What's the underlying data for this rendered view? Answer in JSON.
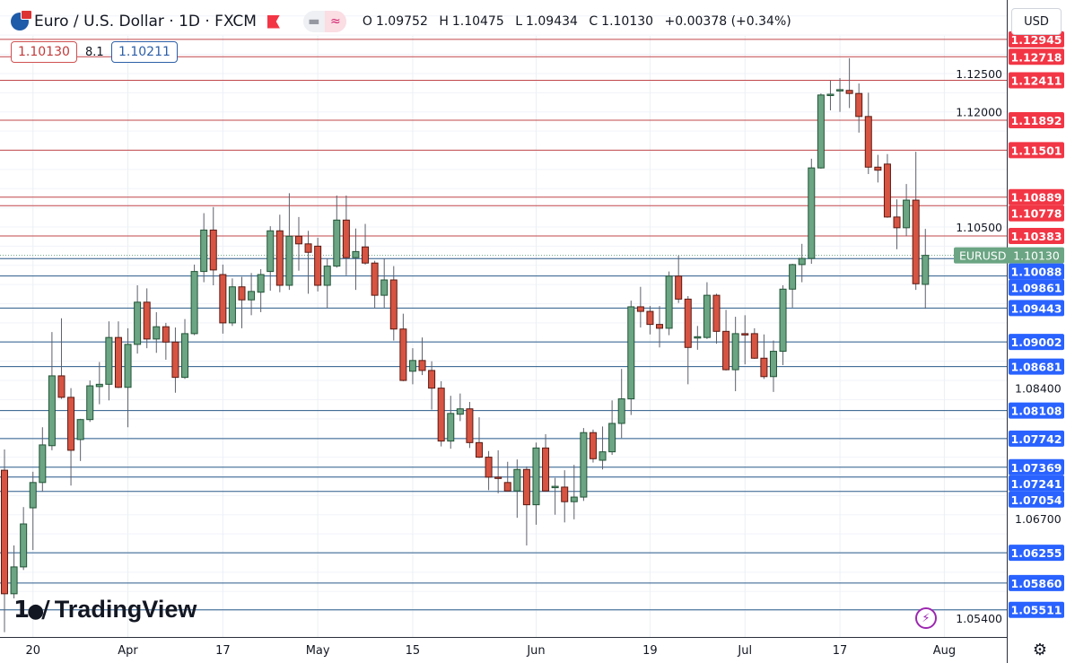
{
  "header": {
    "symbol_title": "Euro / U.S. Dollar · 1D · FXCM",
    "ohlc": {
      "open_label": "O",
      "open": "1.09752",
      "high_label": "H",
      "high": "1.10475",
      "low_label": "L",
      "low": "1.09434",
      "close_label": "C",
      "close": "1.10130",
      "change": "+0.00378 (+0.34%)"
    },
    "sell_price": "1.10130",
    "spread": "8.1",
    "buy_price": "1.10211",
    "currency_button": "USD"
  },
  "branding": {
    "logo_text": "TradingView"
  },
  "icons": {
    "flag": "flag-icon",
    "pill_left": "minus-icon",
    "pill_right": "approx-icon",
    "bolt": "lightning-icon",
    "gear": "gear-icon",
    "globe": "globe-icon"
  },
  "colors": {
    "up": "#6ba583",
    "up_border": "#225437",
    "down": "#d75442",
    "down_border": "#5b1a13",
    "resistance": "#f23645",
    "support": "#2962ff",
    "resistance_line": "#c0474a",
    "support_line": "#2a5a8a",
    "current_price": "#6ba583"
  },
  "chart_data": {
    "type": "candlestick",
    "symbol": "EURUSD",
    "timeframe": "1D",
    "ylim": [
      1.0535,
      1.1345
    ],
    "grid": true,
    "price_ticks": [
      "1.12500",
      "1.12000",
      "1.10500",
      "1.08400",
      "1.06700",
      "1.05400"
    ],
    "x_ticks": [
      {
        "label": "20",
        "date": "Mar 20"
      },
      {
        "label": "Apr",
        "date": "Apr 3"
      },
      {
        "label": "17",
        "date": "Apr 17"
      },
      {
        "label": "May",
        "date": "May 1"
      },
      {
        "label": "15",
        "date": "May 15"
      },
      {
        "label": "Jun",
        "date": "Jun 1"
      },
      {
        "label": "19",
        "date": "Jun 19"
      },
      {
        "label": "Jul",
        "date": "Jul 3"
      },
      {
        "label": "17",
        "date": "Jul 17"
      },
      {
        "label": "Aug",
        "date": "Aug 1"
      }
    ],
    "resistance_levels": [
      "1.12945",
      "1.12718",
      "1.12411",
      "1.11892",
      "1.11501",
      "1.10889",
      "1.10778",
      "1.10383"
    ],
    "support_levels": [
      "1.10088",
      "1.09861",
      "1.09443",
      "1.09002",
      "1.08681",
      "1.08108",
      "1.07742",
      "1.07369",
      "1.07241",
      "1.07054",
      "1.06255",
      "1.05860",
      "1.05511"
    ],
    "current_price": {
      "label": "EURUSD",
      "value": "1.10130"
    },
    "candle_fields": [
      "date",
      "open",
      "high",
      "low",
      "close"
    ],
    "candles": [
      [
        "Mar 15",
        1.0733,
        1.076,
        1.0522,
        1.0572
      ],
      [
        "Mar 16",
        1.0572,
        1.0635,
        1.0566,
        1.0607
      ],
      [
        "Mar 17",
        1.0607,
        1.0685,
        1.0603,
        1.0663
      ],
      [
        "Mar 20",
        1.0684,
        1.0731,
        1.0629,
        1.0717
      ],
      [
        "Mar 21",
        1.0717,
        1.0789,
        1.0705,
        1.0766
      ],
      [
        "Mar 22",
        1.0765,
        1.0913,
        1.0759,
        1.0856
      ],
      [
        "Mar 23",
        1.0856,
        1.0931,
        1.0826,
        1.0828
      ],
      [
        "Mar 24",
        1.0828,
        1.084,
        1.0713,
        1.0759
      ],
      [
        "Mar 27",
        1.0773,
        1.08,
        1.0745,
        1.0799
      ],
      [
        "Mar 28",
        1.0799,
        1.085,
        1.0796,
        1.0843
      ],
      [
        "Mar 29",
        1.0842,
        1.0874,
        1.0819,
        1.0845
      ],
      [
        "Mar 30",
        1.0845,
        1.0927,
        1.0824,
        1.0906
      ],
      [
        "Mar 31",
        1.0906,
        1.0927,
        1.084,
        1.0841
      ],
      [
        "Apr 3",
        1.0841,
        1.0918,
        1.0789,
        1.0897
      ],
      [
        "Apr 4",
        1.0897,
        1.0974,
        1.0885,
        1.0952
      ],
      [
        "Apr 5",
        1.0952,
        1.097,
        1.0892,
        1.0904
      ],
      [
        "Apr 6",
        1.0904,
        1.0939,
        1.0886,
        1.092
      ],
      [
        "Apr 7",
        1.092,
        1.0925,
        1.0877,
        1.09
      ],
      [
        "Apr 10",
        1.09,
        1.0919,
        1.0834,
        1.0854
      ],
      [
        "Apr 11",
        1.0854,
        1.093,
        1.0852,
        1.0911
      ],
      [
        "Apr 12",
        1.0911,
        1.1001,
        1.0909,
        1.0992
      ],
      [
        "Apr 13",
        1.0992,
        1.1068,
        1.0978,
        1.1046
      ],
      [
        "Apr 14",
        1.1046,
        1.1076,
        1.0974,
        1.0994
      ],
      [
        "Apr 17",
        1.0988,
        1.1001,
        1.0911,
        1.0925
      ],
      [
        "Apr 18",
        1.0925,
        1.0983,
        1.0921,
        1.0972
      ],
      [
        "Apr 19",
        1.0972,
        1.0985,
        1.0918,
        1.0955
      ],
      [
        "Apr 20",
        1.0955,
        1.099,
        1.0935,
        1.0966
      ],
      [
        "Apr 21",
        1.0965,
        1.0995,
        1.0939,
        1.0988
      ],
      [
        "Apr 24",
        1.0992,
        1.1051,
        1.0967,
        1.1045
      ],
      [
        "Apr 25",
        1.1045,
        1.1066,
        1.0965,
        1.0974
      ],
      [
        "Apr 26",
        1.0974,
        1.1094,
        1.0968,
        1.1038
      ],
      [
        "Apr 27",
        1.1038,
        1.1063,
        1.0993,
        1.1028
      ],
      [
        "Apr 28",
        1.1028,
        1.1045,
        1.0963,
        1.1017
      ],
      [
        "May 1",
        1.1025,
        1.1036,
        1.0966,
        1.0974
      ],
      [
        "May 2",
        1.0974,
        1.1009,
        1.0944,
        1.0999
      ],
      [
        "May 3",
        1.0999,
        1.1091,
        1.0997,
        1.1059
      ],
      [
        "May 4",
        1.1059,
        1.1091,
        1.0987,
        1.101
      ],
      [
        "May 5",
        1.101,
        1.1048,
        1.0968,
        1.1018
      ],
      [
        "May 8",
        1.1024,
        1.1054,
        1.1001,
        1.1003
      ],
      [
        "May 9",
        1.1003,
        1.1006,
        1.0944,
        1.0961
      ],
      [
        "May 10",
        1.0961,
        1.1009,
        1.0944,
        1.0981
      ],
      [
        "May 11",
        1.0981,
        1.0999,
        1.0902,
        1.0917
      ],
      [
        "May 12",
        1.0917,
        1.0937,
        1.0849,
        1.085
      ],
      [
        "May 15",
        1.0862,
        1.0892,
        1.0845,
        1.0876
      ],
      [
        "May 16",
        1.0876,
        1.0906,
        1.0857,
        1.0863
      ],
      [
        "May 17",
        1.0863,
        1.0875,
        1.0812,
        1.084
      ],
      [
        "May 18",
        1.084,
        1.0849,
        1.0764,
        1.0771
      ],
      [
        "May 19",
        1.0771,
        1.083,
        1.0761,
        1.0807
      ],
      [
        "May 22",
        1.0806,
        1.0833,
        1.0797,
        1.0813
      ],
      [
        "May 23",
        1.0813,
        1.0822,
        1.0762,
        1.0769
      ],
      [
        "May 24",
        1.0769,
        1.0802,
        1.0749,
        1.075
      ],
      [
        "May 25",
        1.075,
        1.0758,
        1.0707,
        1.0724
      ],
      [
        "May 26",
        1.0724,
        1.0759,
        1.0703,
        1.0723
      ],
      [
        "May 29",
        1.0717,
        1.0744,
        1.0705,
        1.0706
      ],
      [
        "May 30",
        1.0706,
        1.0747,
        1.0671,
        1.0734
      ],
      [
        "May 31",
        1.0734,
        1.0738,
        1.0635,
        1.0688
      ],
      [
        "Jun 1",
        1.0688,
        1.0769,
        1.0662,
        1.0762
      ],
      [
        "Jun 2",
        1.0762,
        1.078,
        1.0705,
        1.0706
      ],
      [
        "Jun 5",
        1.0711,
        1.0723,
        1.0675,
        1.0712
      ],
      [
        "Jun 6",
        1.0711,
        1.0733,
        1.0665,
        1.0692
      ],
      [
        "Jun 7",
        1.0692,
        1.074,
        1.0669,
        1.0698
      ],
      [
        "Jun 8",
        1.0698,
        1.0788,
        1.0693,
        1.0782
      ],
      [
        "Jun 9",
        1.0782,
        1.0786,
        1.0743,
        1.0748
      ],
      [
        "Jun 12",
        1.0746,
        1.079,
        1.0734,
        1.0757
      ],
      [
        "Jun 13",
        1.0757,
        1.0824,
        1.0753,
        1.0794
      ],
      [
        "Jun 14",
        1.0794,
        1.0865,
        1.0775,
        1.0826
      ],
      [
        "Jun 15",
        1.0826,
        1.0954,
        1.0805,
        1.0946
      ],
      [
        "Jun 16",
        1.0946,
        1.0972,
        1.0919,
        1.094
      ],
      [
        "Jun 19",
        1.094,
        1.0947,
        1.091,
        1.0923
      ],
      [
        "Jun 20",
        1.0923,
        1.0947,
        1.0893,
        1.0918
      ],
      [
        "Jun 21",
        1.0918,
        1.0992,
        1.0909,
        1.0986
      ],
      [
        "Jun 22",
        1.0986,
        1.1013,
        1.0951,
        1.0956
      ],
      [
        "Jun 23",
        1.0956,
        1.096,
        1.0845,
        1.0893
      ],
      [
        "Jun 26",
        1.0906,
        1.0921,
        1.089,
        1.0907
      ],
      [
        "Jun 27",
        1.0906,
        1.0978,
        1.0904,
        1.0961
      ],
      [
        "Jun 28",
        1.0961,
        1.0963,
        1.0898,
        1.0914
      ],
      [
        "Jun 29",
        1.0914,
        1.0942,
        1.0863,
        1.0864
      ],
      [
        "Jun 30",
        1.0864,
        1.0933,
        1.0836,
        1.0911
      ],
      [
        "Jul 3",
        1.0911,
        1.0935,
        1.0871,
        1.091
      ],
      [
        "Jul 4",
        1.0911,
        1.0918,
        1.0878,
        1.0879
      ],
      [
        "Jul 5",
        1.0879,
        1.091,
        1.0852,
        1.0855
      ],
      [
        "Jul 6",
        1.0855,
        1.0902,
        1.0835,
        1.0888
      ],
      [
        "Jul 7",
        1.0888,
        1.0974,
        1.087,
        1.0969
      ],
      [
        "Jul 10",
        1.0969,
        1.1002,
        1.0945,
        1.1001
      ],
      [
        "Jul 11",
        1.1001,
        1.1028,
        1.0978,
        1.1009
      ],
      [
        "Jul 12",
        1.1009,
        1.1139,
        1.1002,
        1.1127
      ],
      [
        "Jul 13",
        1.1127,
        1.1224,
        1.1126,
        1.1222
      ],
      [
        "Jul 14",
        1.1222,
        1.1241,
        1.1202,
        1.1223
      ],
      [
        "Jul 17",
        1.1228,
        1.1244,
        1.12,
        1.1229
      ],
      [
        "Jul 18",
        1.1228,
        1.127,
        1.1205,
        1.1224
      ],
      [
        "Jul 19",
        1.1224,
        1.1237,
        1.1173,
        1.1194
      ],
      [
        "Jul 20",
        1.1194,
        1.1225,
        1.1119,
        1.1128
      ],
      [
        "Jul 21",
        1.1128,
        1.1144,
        1.1108,
        1.1124
      ],
      [
        "Jul 24",
        1.1132,
        1.1145,
        1.1062,
        1.1063
      ],
      [
        "Jul 25",
        1.1063,
        1.1086,
        1.1021,
        1.1049
      ],
      [
        "Jul 26",
        1.1049,
        1.1106,
        1.1038,
        1.1085
      ],
      [
        "Jul 27",
        1.1085,
        1.1148,
        1.0968,
        1.0976
      ],
      [
        "Jul 28",
        1.09752,
        1.10475,
        1.09434,
        1.1013
      ]
    ]
  }
}
